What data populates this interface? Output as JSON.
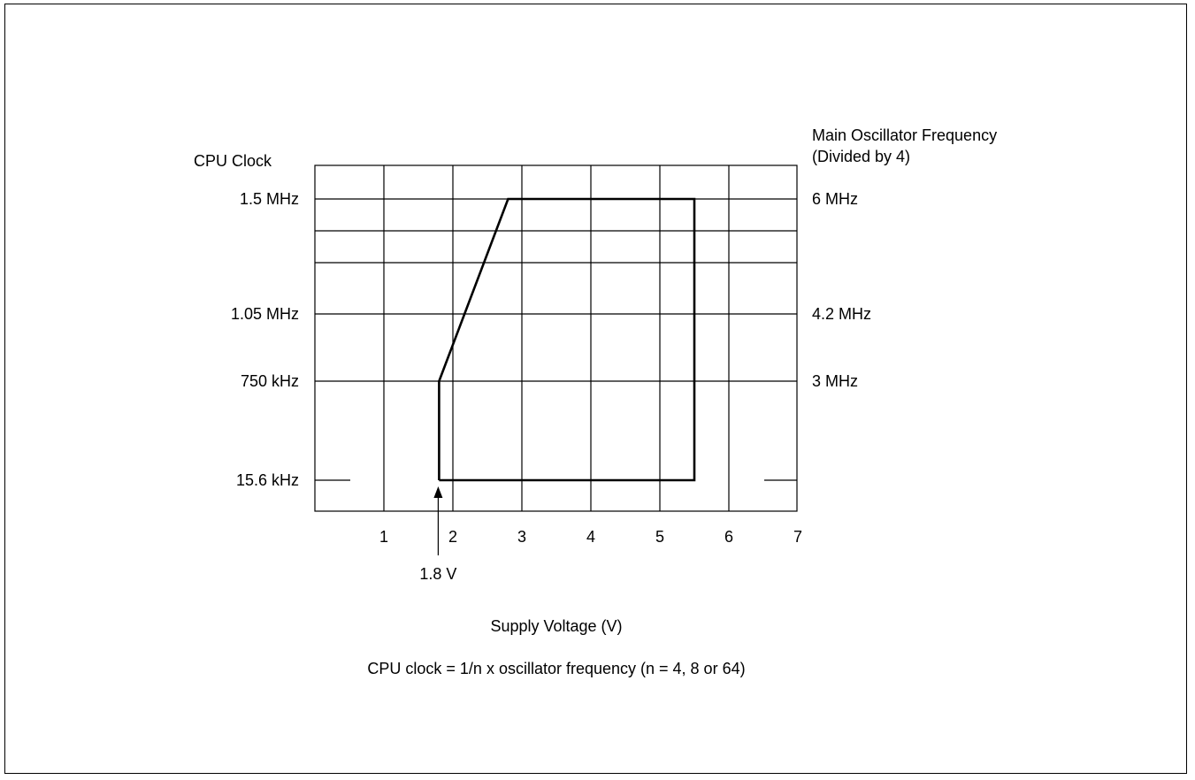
{
  "chart_data": {
    "type": "line",
    "title": "",
    "xlabel": "Supply Voltage (V)",
    "ylabel_left": "CPU Clock",
    "ylabel_right_line1": "Main Oscillator Frequency",
    "ylabel_right_line2": "(Divided by 4)",
    "caption": "CPU clock = 1/n x oscillator frequency (n = 4, 8 or 64)",
    "x_ticks": [
      {
        "value": 1,
        "label": "1"
      },
      {
        "value": 2,
        "label": "2"
      },
      {
        "value": 3,
        "label": "3"
      },
      {
        "value": 4,
        "label": "4"
      },
      {
        "value": 5,
        "label": "5"
      },
      {
        "value": 6,
        "label": "6"
      },
      {
        "value": 7,
        "label": "7"
      }
    ],
    "xlim": [
      0,
      7
    ],
    "y_left_ticks": [
      {
        "level": "15.6 kHz",
        "label": "15.6 kHz"
      },
      {
        "level": "750 kHz",
        "label": "750 kHz"
      },
      {
        "level": "1.05 MHz",
        "label": "1.05 MHz"
      },
      {
        "level": "1.5 MHz",
        "label": "1.5 MHz"
      }
    ],
    "y_right_ticks": [
      {
        "level": "750 kHz",
        "label": "3 MHz"
      },
      {
        "level": "1.05 MHz",
        "label": "4.2 MHz"
      },
      {
        "level": "1.5 MHz",
        "label": "6 MHz"
      }
    ],
    "series": [
      {
        "points": [
          {
            "x": 1.8,
            "y": "15.6 kHz"
          },
          {
            "x": 1.8,
            "y": "750 kHz"
          },
          {
            "x": 2.8,
            "y": "1.5 MHz"
          },
          {
            "x": 5.5,
            "y": "1.5 MHz"
          },
          {
            "x": 5.5,
            "y": "15.6 kHz"
          },
          {
            "x": 1.8,
            "y": "15.6 kHz"
          }
        ]
      }
    ],
    "annotation": {
      "x": 1.8,
      "text": "1.8 V"
    },
    "grid": true
  }
}
